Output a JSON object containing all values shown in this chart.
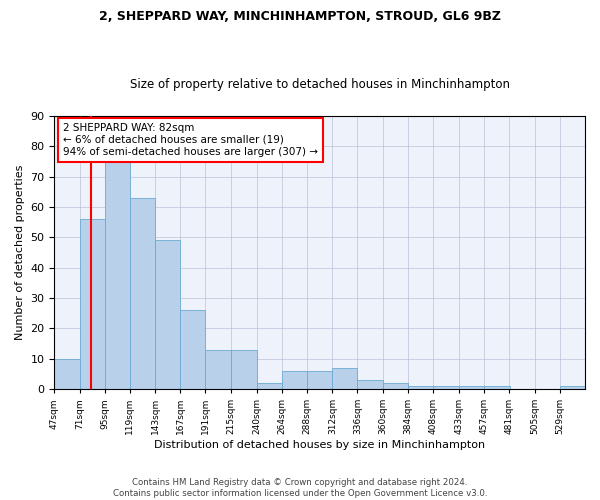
{
  "title1": "2, SHEPPARD WAY, MINCHINHAMPTON, STROUD, GL6 9BZ",
  "title2": "Size of property relative to detached houses in Minchinhampton",
  "xlabel": "Distribution of detached houses by size in Minchinhampton",
  "ylabel": "Number of detached properties",
  "bin_labels": [
    "47sqm",
    "71sqm",
    "95sqm",
    "119sqm",
    "143sqm",
    "167sqm",
    "191sqm",
    "215sqm",
    "240sqm",
    "264sqm",
    "288sqm",
    "312sqm",
    "336sqm",
    "360sqm",
    "384sqm",
    "408sqm",
    "433sqm",
    "457sqm",
    "481sqm",
    "505sqm",
    "529sqm"
  ],
  "bins": [
    47,
    71,
    95,
    119,
    143,
    167,
    191,
    215,
    240,
    264,
    288,
    312,
    336,
    360,
    384,
    408,
    433,
    457,
    481,
    505,
    529,
    553
  ],
  "bar_values": [
    10,
    56,
    76,
    63,
    49,
    26,
    13,
    13,
    2,
    6,
    6,
    7,
    3,
    2,
    1,
    1,
    1,
    1,
    0,
    0,
    1
  ],
  "bar_color": "#b8d0ea",
  "bar_edgecolor": "#6aaad4",
  "property_size": 82,
  "annotation_text": "2 SHEPPARD WAY: 82sqm\n← 6% of detached houses are smaller (19)\n94% of semi-detached houses are larger (307) →",
  "annotation_box_color": "white",
  "annotation_box_edgecolor": "red",
  "vline_color": "red",
  "ylim": [
    0,
    90
  ],
  "yticks": [
    0,
    10,
    20,
    30,
    40,
    50,
    60,
    70,
    80,
    90
  ],
  "footnote": "Contains HM Land Registry data © Crown copyright and database right 2024.\nContains public sector information licensed under the Open Government Licence v3.0.",
  "bg_color": "#eef2fb",
  "grid_color": "#b0b8d0"
}
